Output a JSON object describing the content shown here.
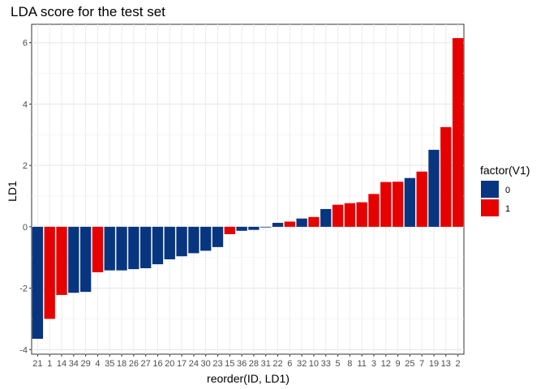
{
  "chart_data": {
    "type": "bar",
    "title": "LDA score for the test set",
    "xlabel": "reorder(ID, LD1)",
    "ylabel": "LD1",
    "ylim": [
      -4.15,
      6.6
    ],
    "yticks": [
      -4,
      -2,
      0,
      2,
      4,
      6
    ],
    "grid": true,
    "legend_position": "right",
    "legend": {
      "title": "factor(V1)",
      "entries": [
        {
          "label": "0",
          "color": "#08357f"
        },
        {
          "label": "1",
          "color": "#e60000"
        }
      ]
    },
    "categories": [
      "21",
      "1",
      "14",
      "34",
      "29",
      "4",
      "35",
      "18",
      "26",
      "27",
      "16",
      "20",
      "17",
      "24",
      "30",
      "23",
      "15",
      "36",
      "28",
      "31",
      "22",
      "6",
      "32",
      "10",
      "33",
      "5",
      "8",
      "11",
      "3",
      "12",
      "9",
      "25",
      "7",
      "19",
      "13",
      "2"
    ],
    "values": [
      -3.65,
      -3.0,
      -2.22,
      -2.15,
      -2.12,
      -1.48,
      -1.42,
      -1.42,
      -1.38,
      -1.35,
      -1.22,
      -1.06,
      -0.96,
      -0.86,
      -0.78,
      -0.66,
      -0.24,
      -0.13,
      -0.1,
      -0.02,
      0.13,
      0.17,
      0.27,
      0.32,
      0.58,
      0.72,
      0.77,
      0.8,
      1.07,
      1.46,
      1.47,
      1.59,
      1.8,
      2.51,
      3.25,
      6.15
    ],
    "groups": [
      "0",
      "1",
      "1",
      "0",
      "0",
      "1",
      "0",
      "0",
      "0",
      "0",
      "0",
      "0",
      "0",
      "0",
      "0",
      "0",
      "1",
      "0",
      "0",
      "0",
      "0",
      "1",
      "0",
      "1",
      "0",
      "1",
      "1",
      "1",
      "1",
      "1",
      "1",
      "0",
      "1",
      "0",
      "1",
      "1"
    ]
  }
}
